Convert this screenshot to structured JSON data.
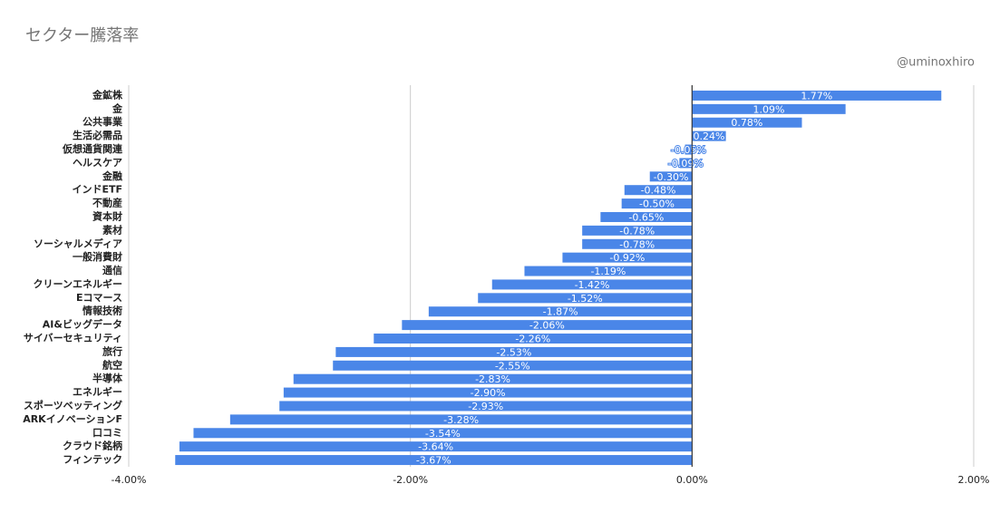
{
  "chart_data": {
    "type": "bar",
    "orientation": "horizontal",
    "title": "セクター騰落率",
    "watermark": "@uminoxhiro",
    "categories": [
      "金鉱株",
      "金",
      "公共事業",
      "生活必需品",
      "仮想通貨関連",
      "ヘルスケア",
      "金融",
      "インドETF",
      "不動産",
      "資本財",
      "素材",
      "ソーシャルメディア",
      "一般消費財",
      "通信",
      "クリーンエネルギー",
      "Eコマース",
      "情報技術",
      "AI&ビッグデータ",
      "サイバーセキュリティ",
      "旅行",
      "航空",
      "半導体",
      "エネルギー",
      "スポーツベッティング",
      "ARKイノベーションF",
      "口コミ",
      "クラウド銘柄",
      "フィンテック"
    ],
    "values": [
      1.77,
      1.09,
      0.78,
      0.24,
      -0.05,
      -0.09,
      -0.3,
      -0.48,
      -0.5,
      -0.65,
      -0.78,
      -0.78,
      -0.92,
      -1.19,
      -1.42,
      -1.52,
      -1.87,
      -2.06,
      -2.26,
      -2.53,
      -2.55,
      -2.83,
      -2.9,
      -2.93,
      -3.28,
      -3.54,
      -3.64,
      -3.67
    ],
    "value_labels": [
      "1.77%",
      "1.09%",
      "0.78%",
      "0.24%",
      "-0.05%",
      "-0.09%",
      "-0.30%",
      "-0.48%",
      "-0.50%",
      "-0.65%",
      "-0.78%",
      "-0.78%",
      "-0.92%",
      "-1.19%",
      "-1.42%",
      "-1.52%",
      "-1.87%",
      "-2.06%",
      "-2.26%",
      "-2.53%",
      "-2.55%",
      "-2.83%",
      "-2.90%",
      "-2.93%",
      "-3.28%",
      "-3.54%",
      "-3.64%",
      "-3.67%"
    ],
    "color": "#4a86e8",
    "xlim": [
      -4,
      2
    ],
    "xticks": [
      {
        "value": -4,
        "label": "-4.00%"
      },
      {
        "value": -2,
        "label": "-2.00%"
      },
      {
        "value": 0,
        "label": "0.00%"
      },
      {
        "value": 2,
        "label": "2.00%"
      }
    ],
    "grid": true
  }
}
